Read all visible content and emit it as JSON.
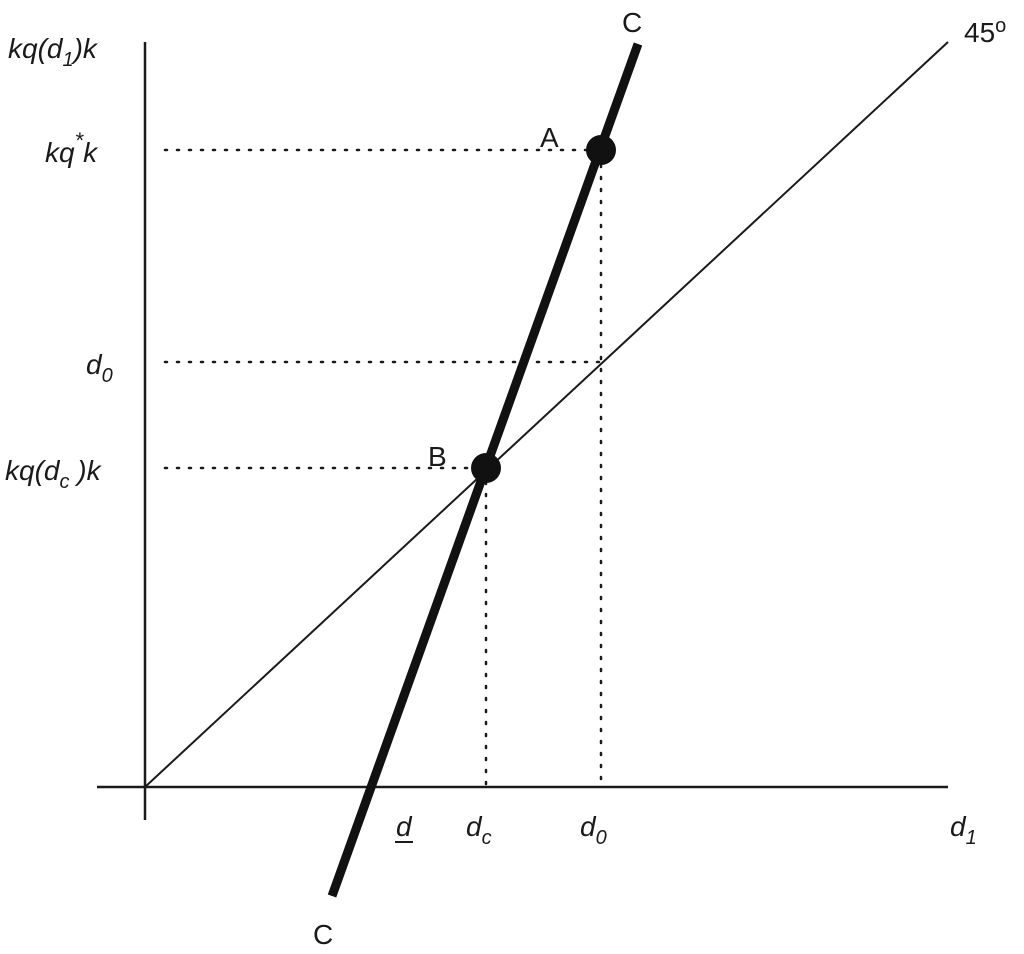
{
  "y_axis_labels": [
    {
      "base": "kq(d",
      "sub": "1",
      "tail": ")k"
    },
    {
      "base": "kq",
      "sup": "*",
      "tail": "k"
    },
    {
      "base": "d",
      "sub": "0"
    },
    {
      "base": "kq(d",
      "sub": "c",
      "tail": " )k"
    }
  ],
  "x_axis_labels": [
    {
      "base": "d"
    },
    {
      "base": "d",
      "sub": "c"
    },
    {
      "base": "d",
      "sub": "0"
    },
    {
      "base": "d",
      "sub": "1"
    }
  ],
  "curve_labels": {
    "top": "C",
    "bottom": "C"
  },
  "diagonal_label": {
    "base": "45",
    "sup": "o"
  },
  "point_labels": [
    "A",
    "B"
  ]
}
